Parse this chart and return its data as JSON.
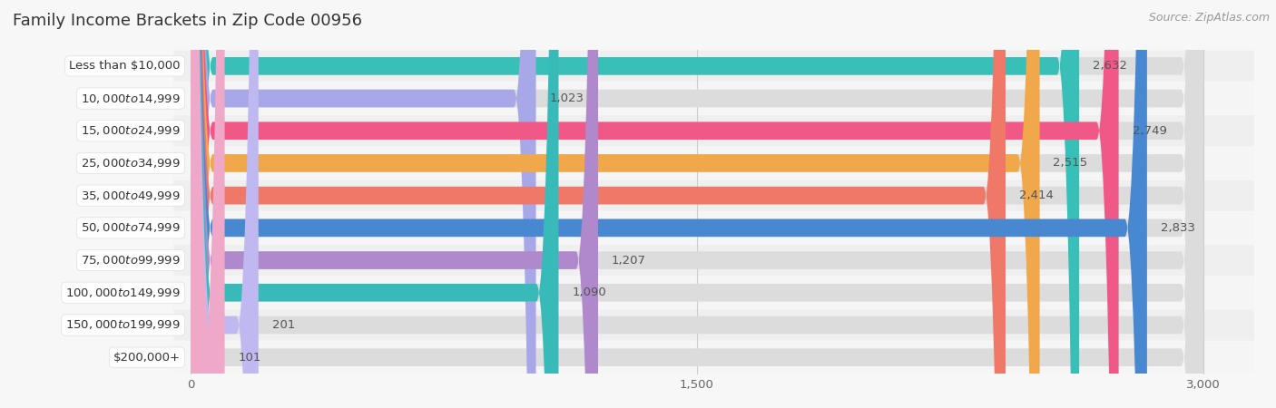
{
  "title": "Family Income Brackets in Zip Code 00956",
  "source": "Source: ZipAtlas.com",
  "categories": [
    "Less than $10,000",
    "$10,000 to $14,999",
    "$15,000 to $24,999",
    "$25,000 to $34,999",
    "$35,000 to $49,999",
    "$50,000 to $74,999",
    "$75,000 to $99,999",
    "$100,000 to $149,999",
    "$150,000 to $199,999",
    "$200,000+"
  ],
  "values": [
    2632,
    1023,
    2749,
    2515,
    2414,
    2833,
    1207,
    1090,
    201,
    101
  ],
  "bar_colors": [
    "#38c0b8",
    "#a8a8e8",
    "#f05888",
    "#f0a84a",
    "#f07868",
    "#4888d0",
    "#b088cc",
    "#38bbb8",
    "#c0b8f0",
    "#f0a8c8"
  ],
  "xlim": [
    0,
    3000
  ],
  "xticks": [
    0,
    1500,
    3000
  ],
  "background_color": "#f7f7f7",
  "bar_bg_color": "#e8e8e8",
  "row_bg_color": "#f0f0f0",
  "title_fontsize": 13,
  "source_fontsize": 9,
  "value_fontsize": 9.5,
  "cat_fontsize": 9.5,
  "bar_height": 0.55
}
